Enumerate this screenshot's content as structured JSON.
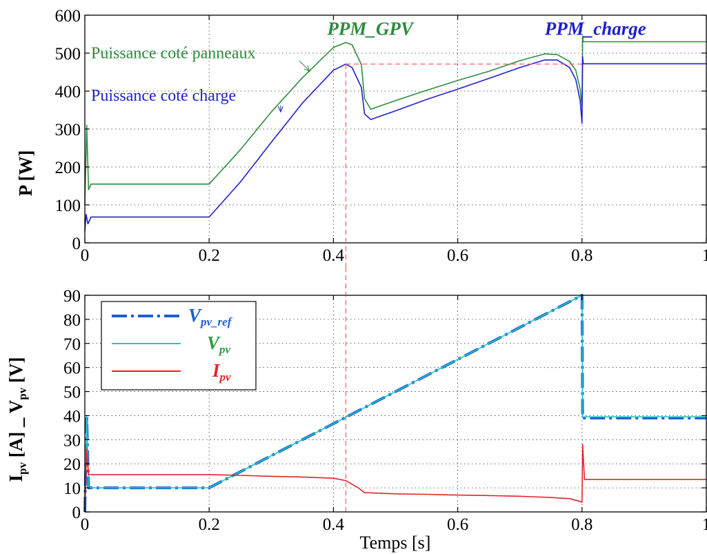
{
  "chart_data": [
    {
      "type": "line",
      "ylabel": "P [W]",
      "xlim": [
        0,
        1
      ],
      "ylim": [
        0,
        600
      ],
      "xticks": [
        "0",
        "0.2",
        "0.4",
        "0.6",
        "0.8",
        "1"
      ],
      "yticks": [
        "0",
        "100",
        "200",
        "300",
        "400",
        "500",
        "600"
      ],
      "grid": true,
      "series": [
        {
          "name": "Puissance coté panneaux",
          "color": "#2e8b3e",
          "x": [
            0,
            0.003,
            0.006,
            0.01,
            0.2,
            0.25,
            0.3,
            0.35,
            0.4,
            0.42,
            0.43,
            0.445,
            0.45,
            0.46,
            0.5,
            0.55,
            0.6,
            0.65,
            0.7,
            0.74,
            0.76,
            0.78,
            0.79,
            0.797,
            0.8,
            0.801,
            0.802,
            1.0
          ],
          "y": [
            100,
            310,
            140,
            155,
            155,
            245,
            345,
            435,
            515,
            528,
            522,
            470,
            380,
            352,
            375,
            402,
            428,
            452,
            480,
            498,
            496,
            478,
            455,
            405,
            360,
            545,
            530,
            530
          ]
        },
        {
          "name": "Puissance coté charge",
          "color": "#1f1fd0",
          "x": [
            0,
            0.002,
            0.005,
            0.01,
            0.2,
            0.25,
            0.3,
            0.35,
            0.4,
            0.42,
            0.43,
            0.445,
            0.45,
            0.46,
            0.5,
            0.55,
            0.6,
            0.65,
            0.7,
            0.74,
            0.76,
            0.78,
            0.79,
            0.797,
            0.8,
            0.801,
            0.802,
            1.0
          ],
          "y": [
            30,
            75,
            50,
            68,
            68,
            160,
            265,
            368,
            455,
            471,
            462,
            410,
            340,
            325,
            348,
            378,
            405,
            433,
            462,
            482,
            482,
            462,
            430,
            375,
            315,
            490,
            472,
            472
          ]
        },
        {
          "name": "",
          "style": "dashed",
          "color": "#ff5a5a",
          "x": [
            0.42,
            0.8
          ],
          "y": [
            471,
            471
          ]
        }
      ],
      "annotations": [
        {
          "text": "PPM_GPV",
          "x": 0.39,
          "y": 548,
          "color": "#2e8b3e"
        },
        {
          "text": "PPM_charge",
          "x": 0.74,
          "y": 548,
          "color": "#1f1fd0"
        },
        {
          "text": "Puissance coté panneaux",
          "x": 0.01,
          "y": 486,
          "color": "#2e8b3e"
        },
        {
          "text": "Puissance coté charge",
          "x": 0.01,
          "y": 375,
          "color": "#1f1fd0"
        }
      ]
    },
    {
      "type": "line",
      "xlabel": "Temps [s]",
      "ylabel_main": "I",
      "ylabel_sub1": "pv",
      "ylabel_mid": " [A]  _ V",
      "ylabel_sub2": "pv",
      "ylabel_end": " [V]",
      "xlim": [
        0,
        1
      ],
      "ylim": [
        0,
        90
      ],
      "xticks": [
        "0",
        "0.2",
        "0.4",
        "0.6",
        "0.8",
        "1"
      ],
      "yticks": [
        "0",
        "10",
        "20",
        "30",
        "40",
        "50",
        "60",
        "70",
        "80",
        "90"
      ],
      "grid": true,
      "legend_position": "top-left",
      "series": [
        {
          "name": "V",
          "name_sub": "pv_ref",
          "style": "dashdot",
          "color": "#1a5fd1",
          "x": [
            0,
            0.003,
            0.006,
            0.2,
            0.8,
            0.801,
            1.0
          ],
          "y": [
            0,
            40,
            10,
            10,
            90,
            39,
            39
          ]
        },
        {
          "name": "V",
          "name_sub": "pv",
          "style": "solid",
          "color": "#22c3c9",
          "x": [
            0,
            0.003,
            0.006,
            0.2,
            0.8,
            0.801,
            1.0
          ],
          "y": [
            0,
            40,
            10,
            10,
            90,
            39.5,
            39.5
          ]
        },
        {
          "name": "I",
          "name_sub": "pv",
          "style": "solid",
          "color": "#e8202a",
          "x": [
            0,
            0.003,
            0.006,
            0.2,
            0.25,
            0.3,
            0.35,
            0.4,
            0.42,
            0.43,
            0.44,
            0.45,
            0.5,
            0.55,
            0.6,
            0.65,
            0.7,
            0.75,
            0.78,
            0.795,
            0.8,
            0.801,
            0.804,
            1.0
          ],
          "y": [
            0,
            26,
            15.5,
            15.5,
            15.2,
            14.8,
            14.5,
            14.0,
            13.0,
            11.5,
            10.0,
            8.0,
            7.5,
            7.3,
            7.0,
            6.8,
            6.5,
            6.0,
            5.5,
            4.5,
            4.0,
            28,
            13.5,
            13.5
          ]
        },
        {
          "name": "",
          "style": "dashed",
          "color": "#ff5a5a",
          "x": [
            0.42,
            0.42
          ],
          "y": [
            0,
            90
          ]
        }
      ]
    }
  ]
}
